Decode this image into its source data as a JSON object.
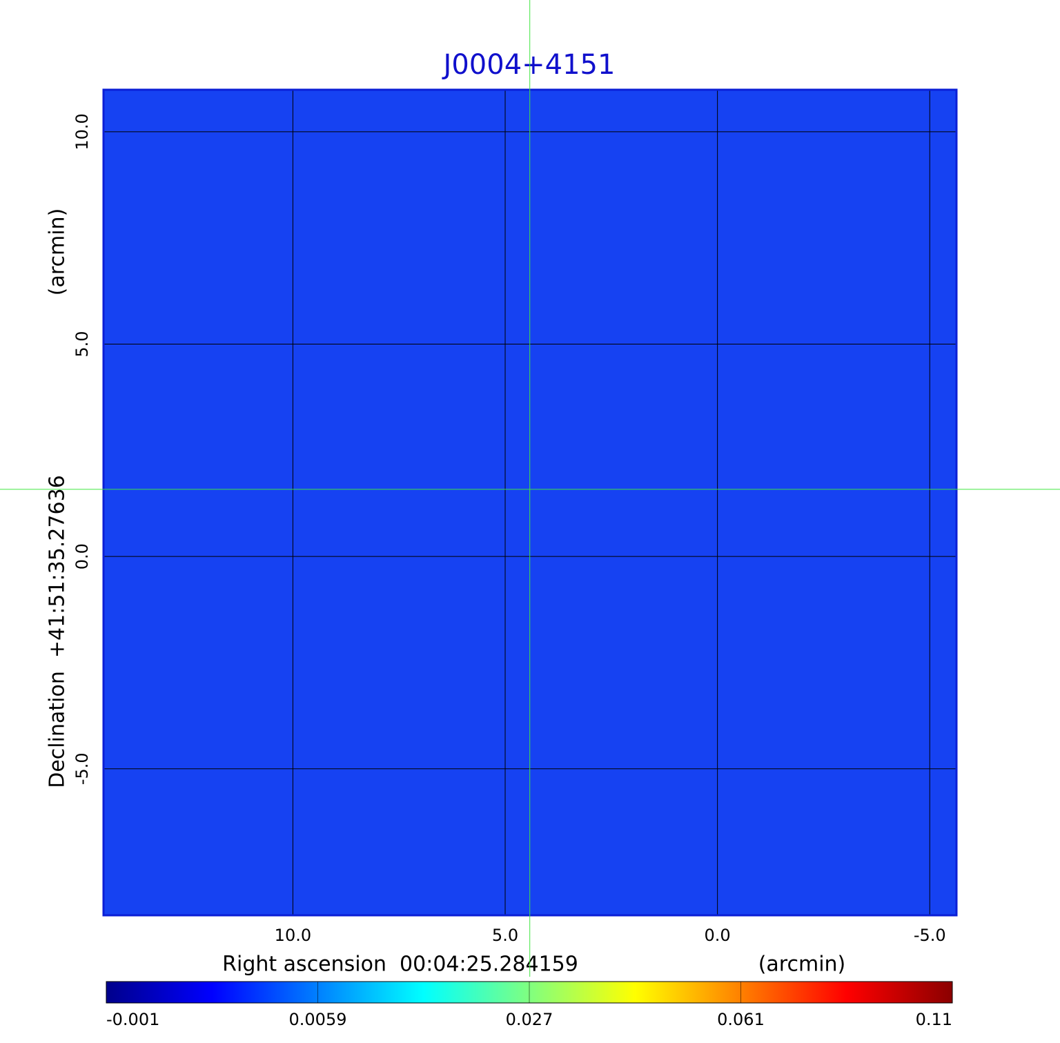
{
  "chart_data": {
    "type": "image",
    "title": "J0004+4151",
    "xlabel": "Right ascension  00:04:25.284159",
    "xunit": "(arcmin)",
    "ylabel": "Declination  +41:51:35.27636",
    "yunit": "(arcmin)",
    "xlim": [
      14.46,
      -5.63
    ],
    "ylim": [
      -8.45,
      10.99
    ],
    "xticks": [
      {
        "value": 10,
        "label": "10.0"
      },
      {
        "value": 5,
        "label": "5.0"
      },
      {
        "value": 0,
        "label": "0.0"
      },
      {
        "value": -5,
        "label": "-5.0"
      }
    ],
    "yticks": [
      {
        "value": 10,
        "label": "10.0"
      },
      {
        "value": 5,
        "label": "5.0"
      },
      {
        "value": 0,
        "label": "0.0"
      },
      {
        "value": -5,
        "label": "-5.0"
      }
    ],
    "grid": true,
    "image_color": "#1642f2",
    "frame_color": "#0b1fd6",
    "crosshair": {
      "x": 4.42,
      "y": 1.58,
      "color": "#3fe63f"
    },
    "colorbar": {
      "ticks": [
        -0.001,
        0.0059,
        0.027,
        0.061,
        0.11
      ],
      "colors": [
        "#00008b",
        "#0000ff",
        "#0080ff",
        "#00ffff",
        "#80ff80",
        "#ffff00",
        "#ff8000",
        "#ff0000",
        "#8b0000"
      ]
    }
  }
}
